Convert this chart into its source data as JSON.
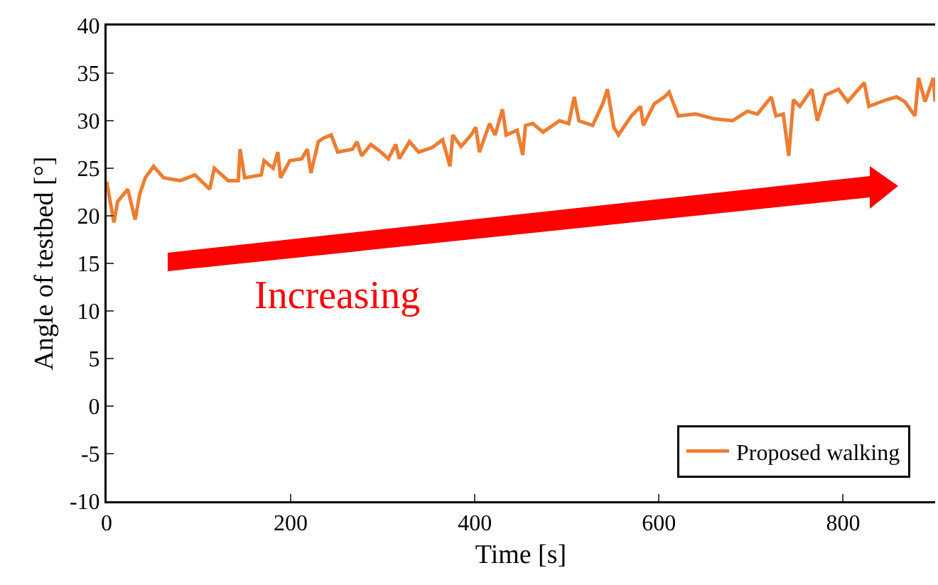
{
  "chart_data": {
    "type": "line",
    "xlabel": "Time [s]",
    "ylabel": "Angle of testbed [°]",
    "x": [
      0,
      8,
      12,
      23,
      31,
      36,
      42,
      51,
      62,
      80,
      96,
      112,
      117,
      132,
      143,
      145,
      150,
      168,
      171,
      181,
      186,
      189,
      199,
      212,
      218,
      222,
      230,
      236,
      244,
      251,
      267,
      272,
      277,
      287,
      298,
      306,
      314,
      318,
      329,
      339,
      354,
      365,
      373,
      376,
      385,
      396,
      401,
      405,
      416,
      422,
      430,
      434,
      446,
      452,
      455,
      463,
      474,
      492,
      502,
      508,
      513,
      528,
      539,
      544,
      551,
      556,
      570,
      580,
      583,
      595,
      606,
      611,
      621,
      640,
      660,
      680,
      696,
      707,
      722,
      727,
      735,
      741,
      746,
      753,
      766,
      772,
      781,
      795,
      805,
      823,
      828,
      847,
      858,
      867,
      878,
      882,
      889,
      898,
      900
    ],
    "series": [
      {
        "name": "Proposed walking",
        "color": "#ed7d31",
        "values": [
          23.6,
          19.3,
          21.5,
          22.8,
          19.6,
          22.3,
          24,
          25.2,
          24,
          23.7,
          24.3,
          22.8,
          25,
          23.7,
          23.7,
          27,
          24,
          24.3,
          25.8,
          25,
          26.7,
          24,
          25.8,
          26,
          27,
          24.5,
          27.8,
          28.2,
          28.5,
          26.7,
          27,
          27.8,
          26.3,
          27.5,
          26.7,
          26,
          27.5,
          26,
          27.8,
          26.7,
          27.2,
          28,
          25.2,
          28.5,
          27.3,
          28.5,
          29.3,
          26.7,
          29.7,
          28.5,
          31.2,
          28.5,
          29,
          26.4,
          29.5,
          29.7,
          28.8,
          30,
          29.7,
          32.5,
          30,
          29.5,
          31.8,
          33.3,
          29.3,
          28.5,
          30.5,
          31.5,
          29.5,
          31.8,
          32.5,
          33,
          30.5,
          30.7,
          30.2,
          30,
          31,
          30.7,
          32.5,
          30.5,
          30.7,
          26.3,
          32.2,
          31.5,
          33.3,
          30,
          32.7,
          33.3,
          32,
          34,
          31.5,
          32.2,
          32.5,
          32,
          30.5,
          34.5,
          32,
          34.5,
          32
        ]
      }
    ],
    "xlim": [
      0,
      900
    ],
    "xticks": [
      0,
      200,
      400,
      600,
      800
    ],
    "ylim": [
      -10,
      40
    ],
    "yticks": [
      -10,
      -5,
      0,
      5,
      10,
      15,
      20,
      25,
      30,
      35,
      40
    ],
    "annotations": [
      "Increasing"
    ],
    "legend": "bottom right",
    "grid": false,
    "marker": "none",
    "line_style": "solid"
  }
}
